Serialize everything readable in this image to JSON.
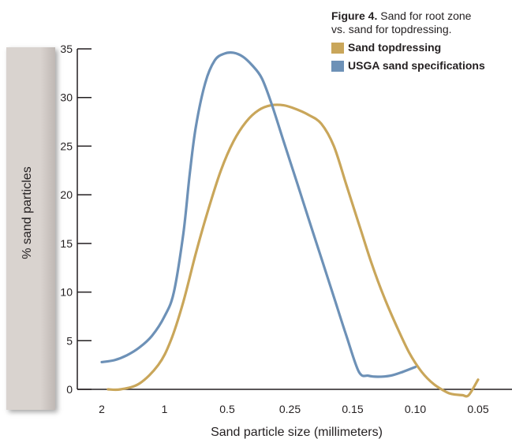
{
  "chart_data": {
    "type": "line",
    "title": "Figure 4.",
    "subtitle_line1": "Sand for root zone",
    "subtitle_line2": "vs. sand for topdressing.",
    "xlabel": "Sand particle size (millimeters)",
    "ylabel": "% sand particles",
    "categories": [
      "2",
      "1",
      "0.5",
      "0.25",
      "0.15",
      "0.10",
      "0.05"
    ],
    "ylim": [
      0,
      35
    ],
    "yticks": [
      0,
      5,
      10,
      15,
      20,
      25,
      30,
      35
    ],
    "legend_position": "top-right",
    "series": [
      {
        "name": "Sand topdressing",
        "color": "#c9a65a",
        "points": [
          [
            0.1,
            0
          ],
          [
            0.3,
            0
          ],
          [
            0.6,
            0.6
          ],
          [
            0.9,
            2.5
          ],
          [
            1.1,
            5
          ],
          [
            1.3,
            9
          ],
          [
            1.5,
            14
          ],
          [
            1.7,
            18.5
          ],
          [
            1.9,
            22.5
          ],
          [
            2.1,
            25.5
          ],
          [
            2.3,
            27.5
          ],
          [
            2.5,
            28.7
          ],
          [
            2.7,
            29.2
          ],
          [
            2.9,
            29.2
          ],
          [
            3.1,
            28.8
          ],
          [
            3.3,
            28.2
          ],
          [
            3.5,
            27.3
          ],
          [
            3.7,
            25
          ],
          [
            3.9,
            21
          ],
          [
            4.1,
            17
          ],
          [
            4.3,
            13
          ],
          [
            4.5,
            9.5
          ],
          [
            4.7,
            6.5
          ],
          [
            4.9,
            3.8
          ],
          [
            5.1,
            1.8
          ],
          [
            5.3,
            0.5
          ],
          [
            5.5,
            -0.3
          ],
          [
            5.6,
            -0.5
          ],
          [
            5.75,
            -0.6
          ],
          [
            5.85,
            -0.6
          ],
          [
            6.0,
            1.0
          ]
        ]
      },
      {
        "name": "USGA sand specifications",
        "color": "#6d91b7",
        "points": [
          [
            0,
            2.8
          ],
          [
            0.2,
            3
          ],
          [
            0.4,
            3.5
          ],
          [
            0.6,
            4.3
          ],
          [
            0.8,
            5.5
          ],
          [
            1.0,
            7.5
          ],
          [
            1.15,
            10
          ],
          [
            1.3,
            16
          ],
          [
            1.4,
            22
          ],
          [
            1.5,
            27
          ],
          [
            1.65,
            31.5
          ],
          [
            1.8,
            33.8
          ],
          [
            1.95,
            34.5
          ],
          [
            2.1,
            34.6
          ],
          [
            2.25,
            34.2
          ],
          [
            2.4,
            33.3
          ],
          [
            2.55,
            32
          ],
          [
            2.7,
            29.5
          ],
          [
            2.9,
            25.5
          ],
          [
            3.1,
            21.5
          ],
          [
            3.3,
            17.5
          ],
          [
            3.5,
            13.5
          ],
          [
            3.7,
            9.5
          ],
          [
            3.9,
            5.5
          ],
          [
            4.1,
            1.8
          ],
          [
            4.25,
            1.4
          ],
          [
            4.4,
            1.3
          ],
          [
            4.6,
            1.4
          ],
          [
            4.8,
            1.8
          ],
          [
            5.0,
            2.3
          ]
        ]
      }
    ]
  }
}
